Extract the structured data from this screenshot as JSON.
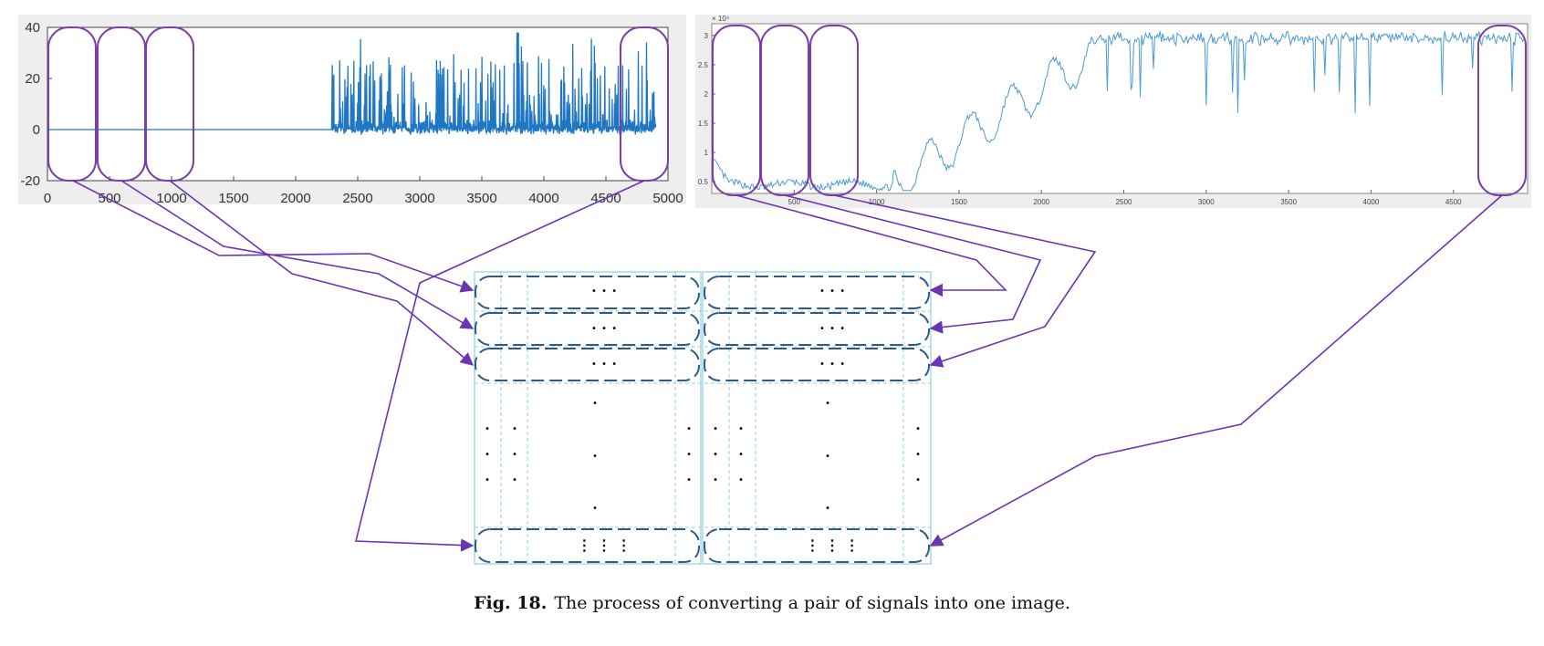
{
  "caption": {
    "label": "Fig. 18.",
    "text": "The process of converting a pair of signals into one image."
  },
  "left_plot": {
    "x_ticks": [
      "0",
      "500",
      "1000",
      "1500",
      "2000",
      "2500",
      "3000",
      "3500",
      "4000",
      "4500",
      "5000"
    ],
    "y_ticks": [
      "40",
      "20",
      "0",
      "-20"
    ]
  },
  "right_plot": {
    "exponent_label": "× 10⁴",
    "x_ticks": [
      "500",
      "1000",
      "1500",
      "2000",
      "2500",
      "3000",
      "3500",
      "4000",
      "4500"
    ],
    "y_ticks": [
      "3",
      "2.5",
      "2",
      "1.5",
      "1",
      "0.5"
    ]
  },
  "matrix": {
    "row_dots": "· · ·",
    "last_row_dots": "⋮ ⋮ ⋮",
    "vertical_dot": "·"
  },
  "chart_data": [
    {
      "type": "line",
      "x_range": [
        0,
        5000
      ],
      "ylim": [
        -20,
        40
      ],
      "grid": false,
      "color": "#1f77c4",
      "segments": [
        {
          "x": [
            0,
            2300
          ],
          "y": [
            0,
            0
          ]
        },
        {
          "x": [
            2300,
            4900
          ],
          "description_level": "bursty, range -3 to 40"
        }
      ]
    },
    {
      "type": "line",
      "x_range": [
        0,
        4900
      ],
      "ylim": [
        0.3,
        3.2
      ],
      "y_multiplier": "×10^4",
      "grid": false,
      "color": "#4a9ad8"
    }
  ],
  "colors": {
    "signal_left": "#1f77c4",
    "signal_right": "#4a9ad8",
    "window": "#7b3fa8",
    "arrow": "#6a35b0",
    "matrix_border": "#8fd0dc",
    "rounded_row": "#2e5a8a"
  }
}
